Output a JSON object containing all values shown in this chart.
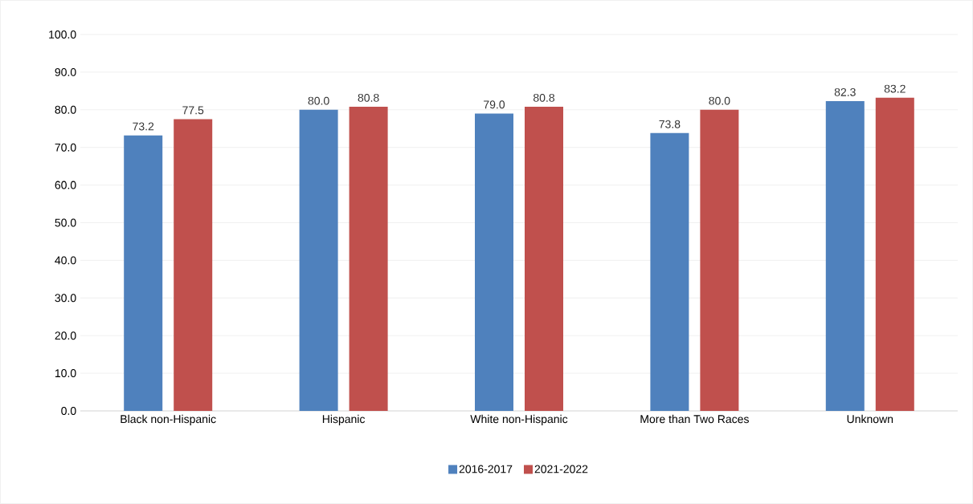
{
  "chart_data": {
    "type": "bar",
    "categories": [
      "Black non-Hispanic",
      "Hispanic",
      "White non-Hispanic",
      "More than Two Races",
      "Unknown"
    ],
    "series": [
      {
        "name": "2016-2017",
        "color": "#4f81bd",
        "values": [
          73.2,
          80.0,
          79.0,
          73.8,
          82.3
        ],
        "value_labels": [
          "73.2",
          "80.0",
          "79.0",
          "73.8",
          "82.3"
        ]
      },
      {
        "name": "2021-2022",
        "color": "#c0504d",
        "values": [
          77.5,
          80.8,
          80.8,
          80.0,
          83.2
        ],
        "value_labels": [
          "77.5",
          "80.8",
          "80.8",
          "80.0",
          "83.2"
        ]
      }
    ],
    "ylim": [
      0,
      100
    ],
    "yticks": [
      {
        "value": 0,
        "label": "0.0"
      },
      {
        "value": 10,
        "label": "10.0"
      },
      {
        "value": 20,
        "label": "20.0"
      },
      {
        "value": 30,
        "label": "30.0"
      },
      {
        "value": 40,
        "label": "40.0"
      },
      {
        "value": 50,
        "label": "50.0"
      },
      {
        "value": 60,
        "label": "60.0"
      },
      {
        "value": 70,
        "label": "70.0"
      },
      {
        "value": 80,
        "label": "80.0"
      },
      {
        "value": 90,
        "label": "90.0"
      },
      {
        "value": 100,
        "label": "100.0"
      }
    ],
    "grid": "y",
    "legend": "bottom"
  }
}
